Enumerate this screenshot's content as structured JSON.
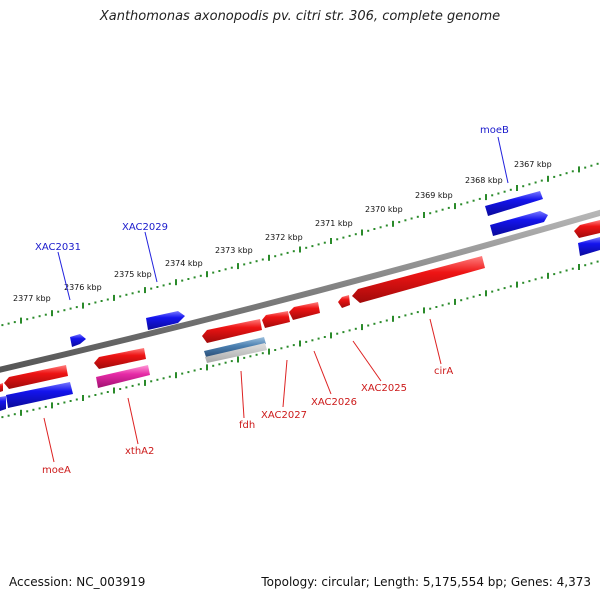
{
  "header": {
    "title": "Xanthomonas axonopodis pv. citri str. 306, complete genome"
  },
  "footer": {
    "accession": "Accession: NC_003919",
    "summary": "Topology: circular; Length: 5,175,554 bp; Genes: 4,373"
  },
  "scale": {
    "unit": "kbp",
    "ticks": [
      {
        "label": "2377 kbp",
        "value": 2377
      },
      {
        "label": "2376 kbp",
        "value": 2376
      },
      {
        "label": "2375 kbp",
        "value": 2375
      },
      {
        "label": "2374 kbp",
        "value": 2374
      },
      {
        "label": "2373 kbp",
        "value": 2373
      },
      {
        "label": "2372 kbp",
        "value": 2372
      },
      {
        "label": "2371 kbp",
        "value": 2371
      },
      {
        "label": "2370 kbp",
        "value": 2370
      },
      {
        "label": "2369 kbp",
        "value": 2369
      },
      {
        "label": "2368 kbp",
        "value": 2368
      },
      {
        "label": "2367 kbp",
        "value": 2367
      }
    ]
  },
  "gene_labels": {
    "forward": [
      "moeB",
      "XAC2029",
      "XAC2031"
    ],
    "reverse": [
      "moeA",
      "xthA2",
      "fdh",
      "XAC2027",
      "XAC2026",
      "XAC2025",
      "cirA"
    ]
  },
  "colors": {
    "forward_strand": "#1a1ae6",
    "reverse_strand": "#e61a1a",
    "rna_feature": "#e020a0",
    "other_feature": "#4a7fb0",
    "backbone": "#808080",
    "tick": "#2a8a2a"
  }
}
